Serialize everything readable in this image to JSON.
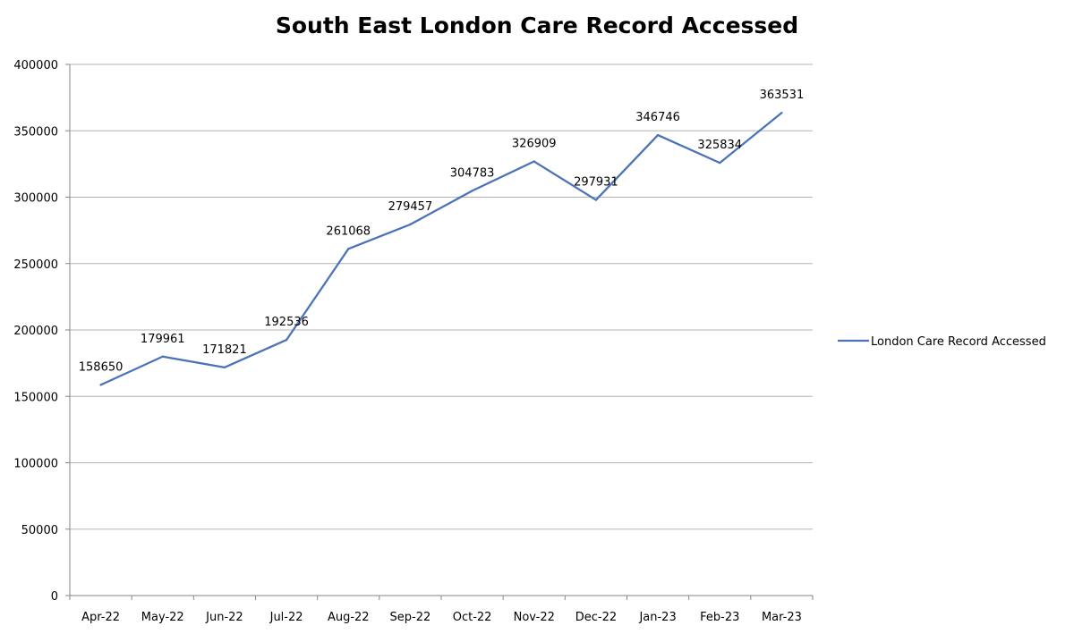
{
  "chart_data": {
    "type": "line",
    "title": "South East London Care Record Accessed",
    "xlabel": "",
    "ylabel": "",
    "categories": [
      "Apr-22",
      "May-22",
      "Jun-22",
      "Jul-22",
      "Aug-22",
      "Sep-22",
      "Oct-22",
      "Nov-22",
      "Dec-22",
      "Jan-23",
      "Feb-23",
      "Mar-23"
    ],
    "series": [
      {
        "name": "London Care Record Accessed",
        "color": "#4a72b8",
        "values": [
          158650,
          179961,
          171821,
          192536,
          261068,
          279457,
          304783,
          326909,
          297931,
          346746,
          325834,
          363531
        ]
      }
    ],
    "ylim": [
      0,
      400000
    ],
    "yticks": [
      0,
      50000,
      100000,
      150000,
      200000,
      250000,
      300000,
      350000,
      400000
    ],
    "grid": true,
    "legend": "right",
    "data_labels": true
  }
}
